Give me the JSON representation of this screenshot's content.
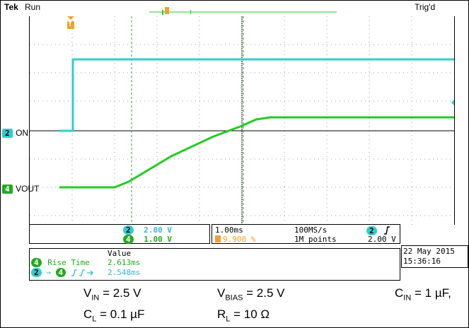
{
  "header": {
    "brand": "Tek",
    "run_state": "Run",
    "trigger_state": "Trig'd",
    "trigger_marker": "T"
  },
  "channels": {
    "ch2": {
      "number": "2",
      "label": "ON",
      "color": "#33cccc",
      "scale": "2.00 V"
    },
    "ch4": {
      "number": "4",
      "label": "VOUT",
      "color": "#22cc22",
      "scale": "1.00 V"
    }
  },
  "timebase": {
    "time_div": "1.00ms",
    "sample_rate": "100MS/s",
    "trigger_position": "9.900 %",
    "record_length": "1M points",
    "trigger_channel": "2",
    "trigger_slope": "rising",
    "trigger_level": "2.00 V"
  },
  "measurements": {
    "value_header": "Value",
    "items": [
      {
        "channel": "4",
        "name": "Rise Time",
        "value": "2.613ms"
      },
      {
        "channel_from": "2",
        "channel_to": "4",
        "name": "",
        "value": "2.548ms"
      }
    ]
  },
  "datetime": {
    "date": "22 May 2015",
    "time": "15:36:16"
  },
  "conditions": {
    "vin": {
      "symbol": "V",
      "sub": "IN",
      "value": "= 2.5 V"
    },
    "vbias": {
      "symbol": "V",
      "sub": "BIAS",
      "value": "= 2.5 V"
    },
    "cin": {
      "symbol": "C",
      "sub": "IN",
      "value": "= 1 µF,"
    },
    "cl": {
      "symbol": "C",
      "sub": "L",
      "value": "= 0.1 µF"
    },
    "rl": {
      "symbol": "R",
      "sub": "L",
      "value": "= 10 Ω"
    }
  }
}
